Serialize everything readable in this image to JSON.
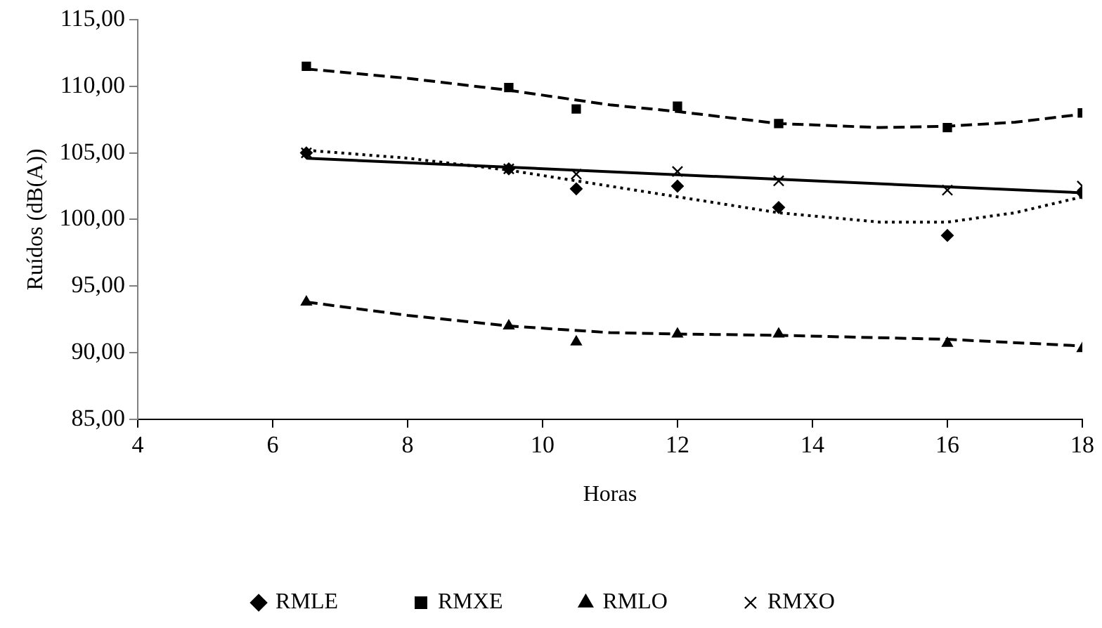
{
  "chart_data": {
    "type": "scatter",
    "xlabel": "Horas",
    "ylabel": "Ruídos (dB(A))",
    "xlim": [
      4,
      18
    ],
    "xticks": [
      4,
      6,
      8,
      10,
      12,
      14,
      16,
      18
    ],
    "ylim": [
      85,
      115
    ],
    "yticks": [
      {
        "value": 85,
        "label": "85,00"
      },
      {
        "value": 90,
        "label": "90,00"
      },
      {
        "value": 95,
        "label": "95,00"
      },
      {
        "value": 100,
        "label": "100,00"
      },
      {
        "value": 105,
        "label": "105,00"
      },
      {
        "value": 110,
        "label": "110,00"
      },
      {
        "value": 115,
        "label": "115,00"
      }
    ],
    "grid": false,
    "legend": "bottom",
    "x": [
      6.5,
      9.5,
      10.5,
      12,
      13.5,
      16,
      18
    ],
    "series": [
      {
        "name": "RMLE",
        "color": "#000000",
        "marker": "diamond",
        "values": [
          105.0,
          103.8,
          102.3,
          102.5,
          100.9,
          98.8,
          102.0
        ]
      },
      {
        "name": "RMXE",
        "color": "#000000",
        "marker": "square",
        "values": [
          111.5,
          109.9,
          108.3,
          108.5,
          107.2,
          106.9,
          108.0
        ]
      },
      {
        "name": "RMLO",
        "color": "#000000",
        "marker": "triangle",
        "values": [
          93.8,
          92.0,
          90.8,
          91.4,
          91.4,
          90.7,
          90.3
        ]
      },
      {
        "name": "RMXO",
        "color": "#000000",
        "marker": "cross",
        "values": [
          105.0,
          103.8,
          103.4,
          103.6,
          102.9,
          102.2,
          102.5
        ]
      },
      {
        "type": "line",
        "color": "#000000",
        "marker": "none",
        "line_style": "dotted",
        "x": [
          6.5,
          8,
          9.5,
          11,
          12,
          13.5,
          15,
          16,
          17,
          18
        ],
        "values": [
          105.2,
          104.6,
          103.7,
          102.5,
          101.7,
          100.5,
          99.8,
          99.8,
          100.5,
          101.7
        ]
      },
      {
        "type": "line",
        "color": "#000000",
        "marker": "none",
        "line_style": "dashed",
        "x": [
          6.5,
          8,
          9.5,
          11,
          12,
          13.5,
          15,
          16,
          17,
          18
        ],
        "values": [
          111.3,
          110.6,
          109.7,
          108.6,
          108.1,
          107.2,
          106.9,
          107.0,
          107.3,
          107.9
        ]
      },
      {
        "type": "line",
        "color": "#000000",
        "marker": "none",
        "line_style": "dashed",
        "x": [
          6.5,
          8,
          9.5,
          11,
          12,
          13.5,
          16,
          18
        ],
        "values": [
          93.8,
          92.8,
          92.0,
          91.5,
          91.4,
          91.3,
          91.0,
          90.5
        ]
      },
      {
        "type": "line",
        "color": "#000000",
        "marker": "none",
        "line_style": "solid",
        "x": [
          6.5,
          18
        ],
        "values": [
          104.6,
          102.0
        ]
      }
    ]
  }
}
